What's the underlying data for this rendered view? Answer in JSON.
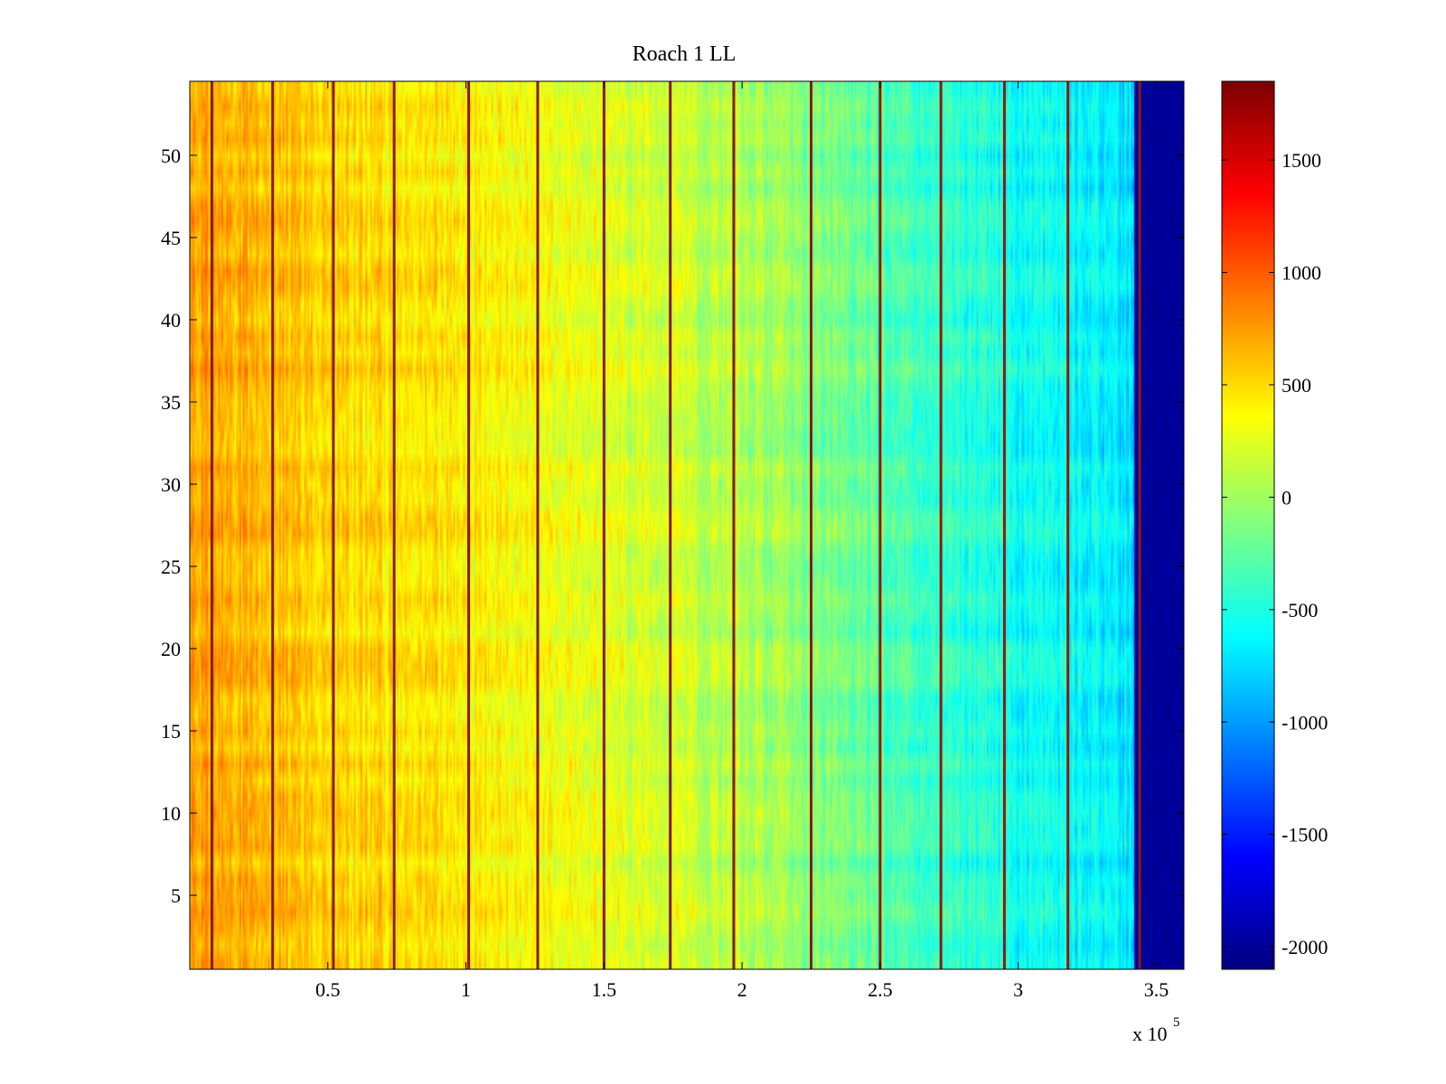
{
  "chart_data": {
    "type": "heatmap",
    "title": "Roach 1 LL",
    "xlabel": "",
    "ylabel": "",
    "x_exponent_label": "x 10",
    "x_exponent_power": "5",
    "xlim": [
      0,
      3.6
    ],
    "ylim": [
      0.5,
      54.5
    ],
    "x_ticks": [
      0.5,
      1,
      1.5,
      2,
      2.5,
      3,
      3.5
    ],
    "x_tick_labels": [
      "0.5",
      "1",
      "1.5",
      "2",
      "2.5",
      "3",
      "3.5"
    ],
    "y_ticks": [
      5,
      10,
      15,
      20,
      25,
      30,
      35,
      40,
      45,
      50
    ],
    "y_tick_labels": [
      "5",
      "10",
      "15",
      "20",
      "25",
      "30",
      "35",
      "40",
      "45",
      "50"
    ],
    "rows": 54,
    "colormap": "jet",
    "clim": [
      -2100,
      1850
    ],
    "colorbar_ticks": [
      -2000,
      -1500,
      -1000,
      -500,
      0,
      500,
      1000,
      1500
    ],
    "colorbar_tick_labels": [
      "-2000",
      "-1500",
      "-1000",
      "-500",
      "0",
      "500",
      "1000",
      "1500"
    ],
    "colorbar_placement": "right",
    "grid": false,
    "value_trend": {
      "x": [
        0,
        0.3,
        0.6,
        1.0,
        1.5,
        2.0,
        2.5,
        3.0,
        3.4
      ],
      "value": [
        700,
        620,
        520,
        430,
        260,
        70,
        -300,
        -560,
        -700
      ]
    },
    "bright_columns_x": [
      0.08,
      0.3,
      0.52,
      0.74,
      1.01,
      1.26,
      1.5,
      1.74,
      1.97,
      2.25,
      2.5,
      2.72,
      2.95,
      3.18,
      3.44
    ],
    "dark_band_x": [
      3.42,
      3.6
    ],
    "dark_band_value": -2000
  }
}
